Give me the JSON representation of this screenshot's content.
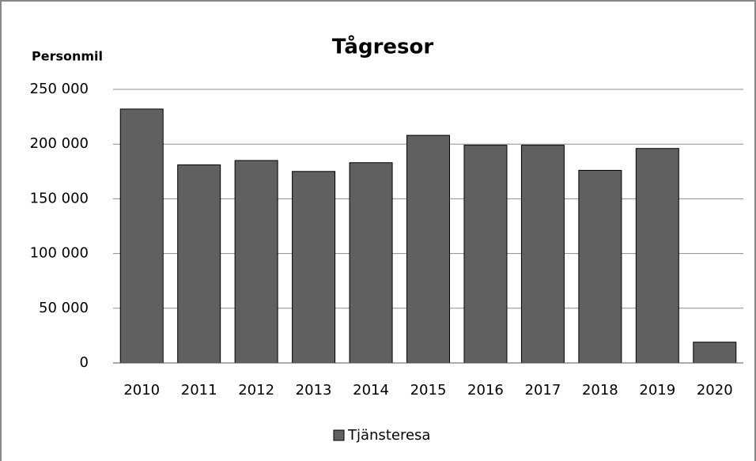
{
  "chart_data": {
    "type": "bar",
    "title": "Tågresor",
    "y_label": "Personmil",
    "categories": [
      "2010",
      "2011",
      "2012",
      "2013",
      "2014",
      "2015",
      "2016",
      "2017",
      "2018",
      "2019",
      "2020"
    ],
    "series": [
      {
        "name": "Tjänsteresa",
        "color": "#606060",
        "values": [
          232000,
          181000,
          185000,
          175000,
          183000,
          208000,
          199000,
          199000,
          176000,
          196000,
          19000
        ]
      }
    ],
    "ylim": [
      0,
      250000
    ],
    "yticks": [
      0,
      {
        "value": 50000,
        "label": "50 000"
      },
      {
        "value": 100000,
        "label": "100 000"
      },
      {
        "value": 150000,
        "label": "150 000"
      },
      {
        "value": 200000,
        "label": "200 000"
      },
      {
        "value": 250000,
        "label": "250 000"
      }
    ],
    "grid": true,
    "legend": "bottom"
  }
}
